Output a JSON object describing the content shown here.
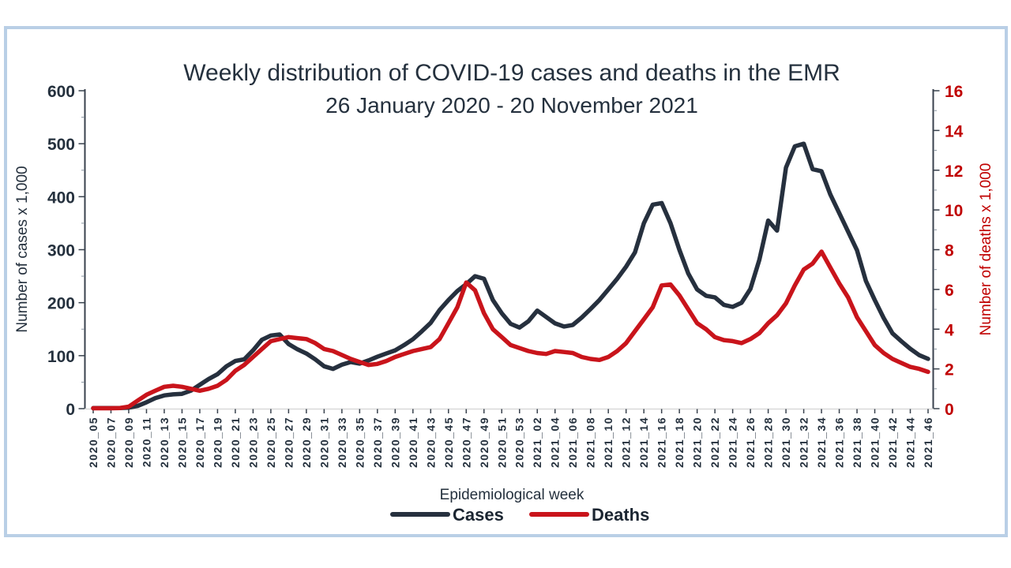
{
  "colors": {
    "cases": "#26303E",
    "deaths": "#C9141B",
    "frame_border": "#B9CFE6",
    "baseline": "#D9D9D9",
    "left_axis_text": "#25313E",
    "right_axis_text": "#C00000"
  },
  "chart_data": {
    "type": "line",
    "title": "Weekly distribution of COVID-19 cases and deaths in the EMR",
    "subtitle": "26 January 2020 - 20 November 2021",
    "xlabel": "Epidemiological week",
    "ylabel_left": "Number of cases x 1,000",
    "ylabel_right": "Number of deaths x 1,000",
    "grid": false,
    "legend_position": "bottom",
    "y_left": {
      "min": 0,
      "max": 600,
      "step": 100,
      "ticks": [
        0,
        100,
        200,
        300,
        400,
        500,
        600
      ]
    },
    "y_right": {
      "min": 0,
      "max": 16,
      "step": 2,
      "ticks": [
        0,
        2,
        4,
        6,
        8,
        10,
        12,
        14,
        16
      ]
    },
    "x_tick_labels": [
      "2020_05",
      "2020_07",
      "2020_09",
      "2020_11",
      "2020_13",
      "2020_15",
      "2020_17",
      "2020_19",
      "2020_21",
      "2020_23",
      "2020_25",
      "2020_27",
      "2020_29",
      "2020_31",
      "2020_33",
      "2020_35",
      "2020_37",
      "2020_39",
      "2020_41",
      "2020_43",
      "2020_45",
      "2020_47",
      "2020_49",
      "2020_51",
      "2020_53",
      "2021_02",
      "2021_04",
      "2021_06",
      "2021_08",
      "2021_10",
      "2021_12",
      "2021_14",
      "2021_16",
      "2021_18",
      "2021_20",
      "2021_22",
      "2021_24",
      "2021_26",
      "2021_28",
      "2021_30",
      "2021_32",
      "2021_34",
      "2021_36",
      "2021_38",
      "2021_40",
      "2021_42",
      "2021_44",
      "2021_46"
    ],
    "weeks": [
      "2020_05",
      "2020_06",
      "2020_07",
      "2020_08",
      "2020_09",
      "2020_10",
      "2020_11",
      "2020_12",
      "2020_13",
      "2020_14",
      "2020_15",
      "2020_16",
      "2020_17",
      "2020_18",
      "2020_19",
      "2020_20",
      "2020_21",
      "2020_22",
      "2020_23",
      "2020_24",
      "2020_25",
      "2020_26",
      "2020_27",
      "2020_28",
      "2020_29",
      "2020_30",
      "2020_31",
      "2020_32",
      "2020_33",
      "2020_34",
      "2020_35",
      "2020_36",
      "2020_37",
      "2020_38",
      "2020_39",
      "2020_40",
      "2020_41",
      "2020_42",
      "2020_43",
      "2020_44",
      "2020_45",
      "2020_46",
      "2020_47",
      "2020_48",
      "2020_49",
      "2020_50",
      "2020_51",
      "2020_52",
      "2020_53",
      "2021_01",
      "2021_02",
      "2021_03",
      "2021_04",
      "2021_05",
      "2021_06",
      "2021_07",
      "2021_08",
      "2021_09",
      "2021_10",
      "2021_11",
      "2021_12",
      "2021_13",
      "2021_14",
      "2021_15",
      "2021_16",
      "2021_17",
      "2021_18",
      "2021_19",
      "2021_20",
      "2021_21",
      "2021_22",
      "2021_23",
      "2021_24",
      "2021_25",
      "2021_26",
      "2021_27",
      "2021_28",
      "2021_29",
      "2021_30",
      "2021_31",
      "2021_32",
      "2021_33",
      "2021_34",
      "2021_35",
      "2021_36",
      "2021_37",
      "2021_38",
      "2021_39",
      "2021_40",
      "2021_41",
      "2021_42",
      "2021_43",
      "2021_44",
      "2021_45",
      "2021_46"
    ],
    "series": [
      {
        "name": "Cases",
        "axis": "left",
        "color": "#26303E",
        "values": [
          1,
          1,
          1,
          1,
          2,
          5,
          12,
          20,
          25,
          27,
          28,
          34,
          45,
          56,
          65,
          80,
          90,
          93,
          110,
          130,
          138,
          140,
          122,
          112,
          104,
          93,
          80,
          75,
          83,
          88,
          85,
          91,
          98,
          104,
          110,
          120,
          131,
          146,
          162,
          186,
          205,
          222,
          235,
          250,
          245,
          205,
          180,
          160,
          153,
          165,
          185,
          173,
          161,
          155,
          158,
          172,
          188,
          205,
          225,
          245,
          268,
          295,
          350,
          385,
          388,
          350,
          300,
          255,
          225,
          213,
          210,
          196,
          192,
          200,
          226,
          281,
          355,
          336,
          455,
          495,
          500,
          452,
          448,
          404,
          369,
          334,
          299,
          241,
          205,
          171,
          142,
          127,
          113,
          101,
          94
        ]
      },
      {
        "name": "Deaths",
        "axis": "right",
        "color": "#C9141B",
        "values": [
          0.02,
          0.02,
          0.02,
          0.03,
          0.1,
          0.4,
          0.7,
          0.9,
          1.1,
          1.15,
          1.1,
          1.0,
          0.9,
          1.0,
          1.15,
          1.45,
          1.9,
          2.2,
          2.6,
          3.0,
          3.4,
          3.5,
          3.6,
          3.55,
          3.5,
          3.3,
          3.0,
          2.9,
          2.7,
          2.5,
          2.35,
          2.2,
          2.25,
          2.4,
          2.6,
          2.75,
          2.9,
          3.0,
          3.1,
          3.5,
          4.3,
          5.1,
          6.35,
          5.95,
          4.8,
          4.0,
          3.6,
          3.2,
          3.05,
          2.9,
          2.8,
          2.75,
          2.9,
          2.85,
          2.8,
          2.6,
          2.5,
          2.45,
          2.6,
          2.9,
          3.3,
          3.9,
          4.5,
          5.1,
          6.2,
          6.25,
          5.7,
          5.0,
          4.3,
          4.0,
          3.6,
          3.45,
          3.4,
          3.3,
          3.5,
          3.8,
          4.3,
          4.7,
          5.3,
          6.2,
          7.0,
          7.3,
          7.9,
          7.1,
          6.3,
          5.6,
          4.6,
          3.9,
          3.2,
          2.8,
          2.5,
          2.3,
          2.1,
          2.0,
          1.85
        ]
      }
    ]
  }
}
